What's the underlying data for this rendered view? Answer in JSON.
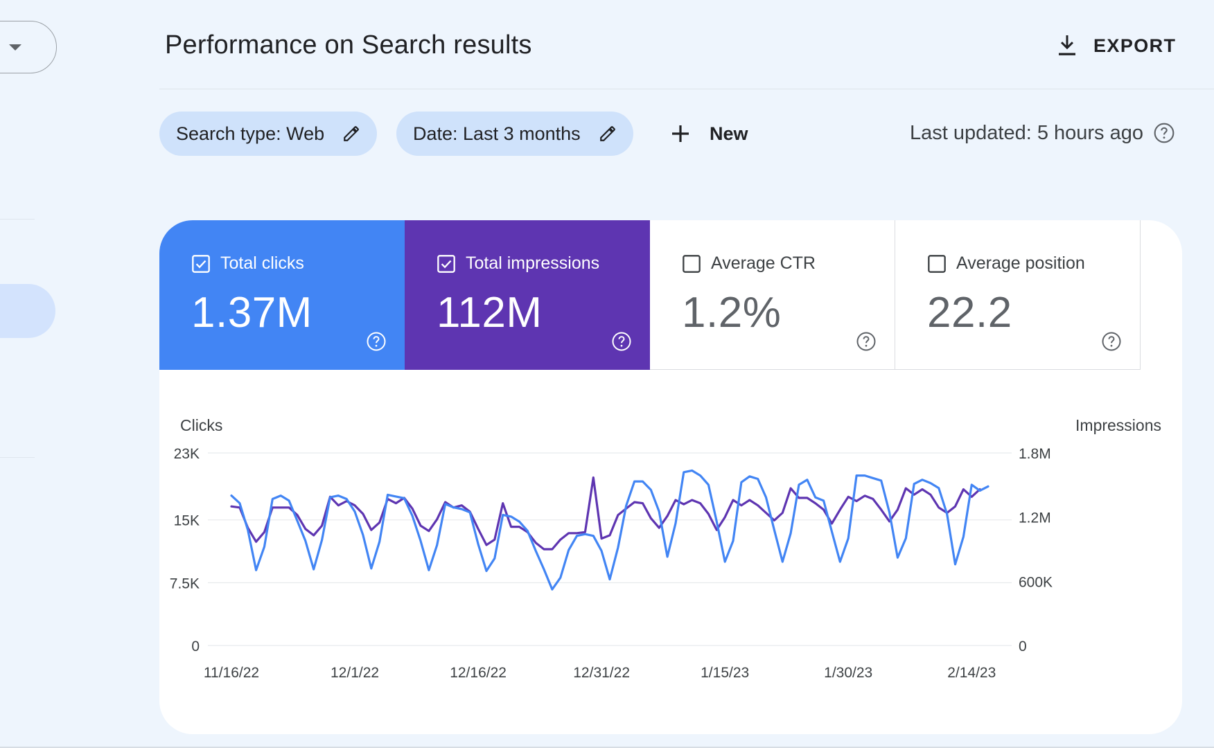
{
  "header": {
    "title": "Performance on Search results",
    "export_label": "EXPORT"
  },
  "filters": {
    "search_type_label": "Search type: Web",
    "date_label": "Date: Last 3 months",
    "new_label": "New",
    "last_updated": "Last updated: 5 hours ago"
  },
  "metrics": [
    {
      "label": "Total clicks",
      "value": "1.37M",
      "checked": true,
      "color": "#4285f4"
    },
    {
      "label": "Total impressions",
      "value": "112M",
      "checked": true,
      "color": "#5e35b1"
    },
    {
      "label": "Average CTR",
      "value": "1.2%",
      "checked": false
    },
    {
      "label": "Average position",
      "value": "22.2",
      "checked": false
    }
  ],
  "chart_data": {
    "type": "line",
    "left_axis_label": "Clicks",
    "right_axis_label": "Impressions",
    "left_ticks": [
      "0",
      "7.5K",
      "15K",
      "23K"
    ],
    "left_tick_values": [
      0,
      7500,
      15000,
      23000
    ],
    "right_ticks": [
      "0",
      "600K",
      "1.2M",
      "1.8M"
    ],
    "right_tick_values": [
      0,
      600000,
      1200000,
      1800000
    ],
    "ylim_left": [
      0,
      23000
    ],
    "ylim_right": [
      0,
      1800000
    ],
    "x_labels": [
      "11/16/22",
      "12/1/22",
      "12/16/22",
      "12/31/22",
      "1/15/23",
      "1/30/23",
      "2/14/23"
    ],
    "x_label_day_index": [
      0,
      15,
      30,
      45,
      60,
      75,
      90
    ],
    "grid": true,
    "series": [
      {
        "name": "Clicks",
        "axis": "left",
        "color": "#4285f4",
        "values": [
          17900,
          17000,
          13800,
          9000,
          11800,
          17500,
          17900,
          17300,
          14900,
          12500,
          9100,
          12600,
          17700,
          17900,
          17500,
          16000,
          13200,
          9200,
          12400,
          18000,
          17800,
          17600,
          15500,
          12500,
          9000,
          12000,
          16900,
          16500,
          16300,
          15900,
          12100,
          8900,
          10400,
          15600,
          15400,
          14800,
          13700,
          11300,
          9100,
          6700,
          8100,
          11400,
          13100,
          13300,
          13100,
          11300,
          7900,
          11700,
          16700,
          19600,
          19600,
          18600,
          16000,
          10600,
          14600,
          20700,
          20900,
          20300,
          19200,
          14800,
          10000,
          12500,
          19500,
          20200,
          19900,
          17700,
          13800,
          10000,
          13400,
          19200,
          19800,
          17700,
          17300,
          13600,
          10000,
          12800,
          20300,
          20300,
          20000,
          19700,
          15900,
          10500,
          12800,
          19300,
          19800,
          19400,
          18800,
          15700,
          9700,
          13000,
          19200,
          18500,
          19000
        ],
        "description": "weekly oscillation, ~7K-21K"
      },
      {
        "name": "Impressions",
        "axis": "right",
        "color": "#5e35b1",
        "values": [
          1300000,
          1290000,
          1100000,
          970000,
          1060000,
          1290000,
          1290000,
          1290000,
          1220000,
          1090000,
          1030000,
          1120000,
          1390000,
          1310000,
          1350000,
          1310000,
          1230000,
          1080000,
          1150000,
          1370000,
          1330000,
          1380000,
          1280000,
          1120000,
          1070000,
          1180000,
          1340000,
          1290000,
          1310000,
          1250000,
          1090000,
          940000,
          990000,
          1330000,
          1110000,
          1110000,
          1060000,
          960000,
          900000,
          900000,
          990000,
          1050000,
          1050000,
          1060000,
          1570000,
          1000000,
          1030000,
          1220000,
          1280000,
          1340000,
          1330000,
          1190000,
          1100000,
          1210000,
          1360000,
          1320000,
          1360000,
          1330000,
          1230000,
          1080000,
          1200000,
          1360000,
          1310000,
          1360000,
          1310000,
          1240000,
          1170000,
          1240000,
          1470000,
          1380000,
          1380000,
          1330000,
          1270000,
          1140000,
          1270000,
          1390000,
          1350000,
          1400000,
          1370000,
          1270000,
          1160000,
          1270000,
          1470000,
          1410000,
          1460000,
          1410000,
          1290000,
          1240000,
          1300000,
          1460000,
          1390000,
          1460000
        ],
        "description": "weekly oscillation, ~0.9M-1.57M"
      }
    ]
  }
}
